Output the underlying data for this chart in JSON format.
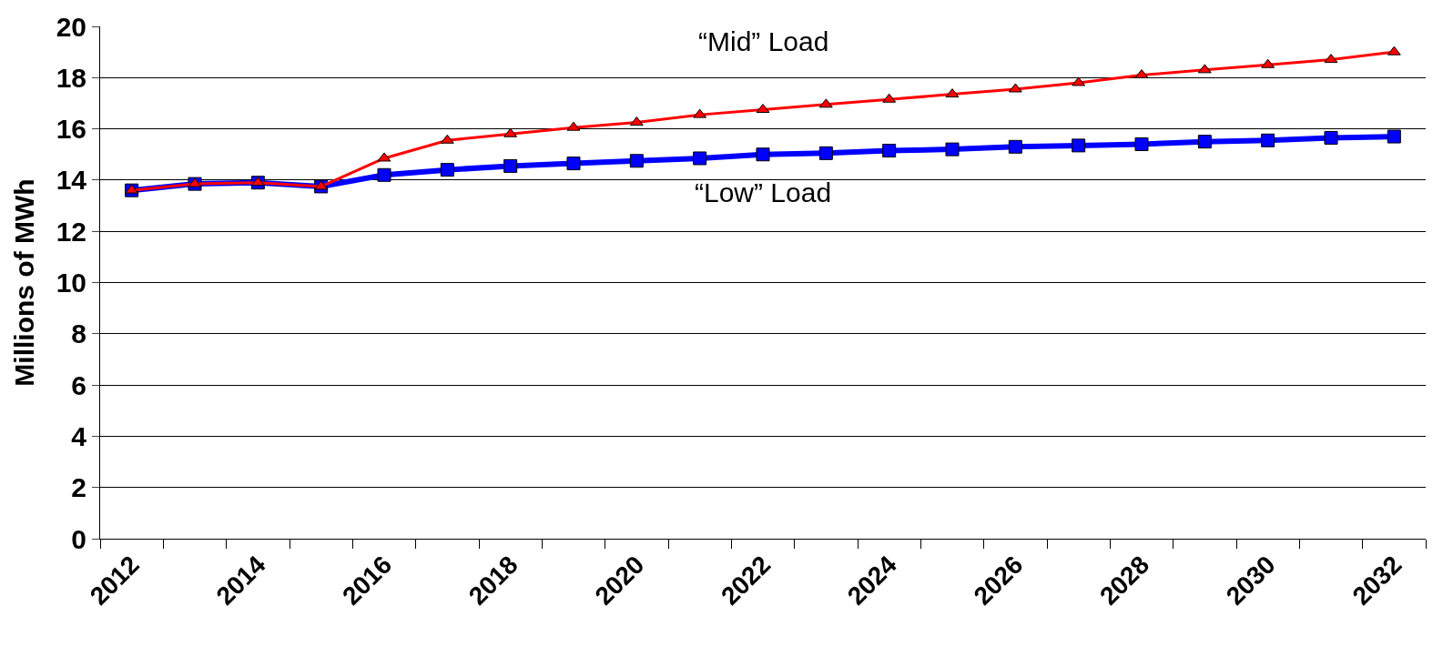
{
  "chart_data": {
    "type": "line",
    "ylabel": "Millions of MWh",
    "categories": [
      "2012",
      null,
      "2014",
      null,
      "2016",
      null,
      "2018",
      null,
      "2020",
      null,
      "2022",
      null,
      "2024",
      null,
      "2026",
      null,
      "2028",
      null,
      "2030",
      null,
      "2032"
    ],
    "series": [
      {
        "name": "“Mid” Load",
        "color": "#ff0000",
        "marker": "triangle",
        "values": [
          13.6,
          13.85,
          13.9,
          13.75,
          14.85,
          15.55,
          15.8,
          16.05,
          16.25,
          16.55,
          16.75,
          16.95,
          17.15,
          17.35,
          17.55,
          17.8,
          18.1,
          18.3,
          18.5,
          18.7,
          19.0
        ]
      },
      {
        "name": "“Low” Load",
        "color": "#0000ff",
        "marker": "square",
        "values": [
          13.6,
          13.85,
          13.9,
          13.75,
          14.2,
          14.4,
          14.55,
          14.65,
          14.75,
          14.85,
          15.0,
          15.05,
          15.15,
          15.2,
          15.3,
          15.35,
          15.4,
          15.5,
          15.55,
          15.65,
          15.7
        ]
      }
    ],
    "ylim": [
      0,
      20
    ],
    "yticks": [
      0,
      2,
      4,
      6,
      8,
      10,
      12,
      14,
      16,
      18,
      20
    ],
    "grid": "y",
    "legend": false
  }
}
